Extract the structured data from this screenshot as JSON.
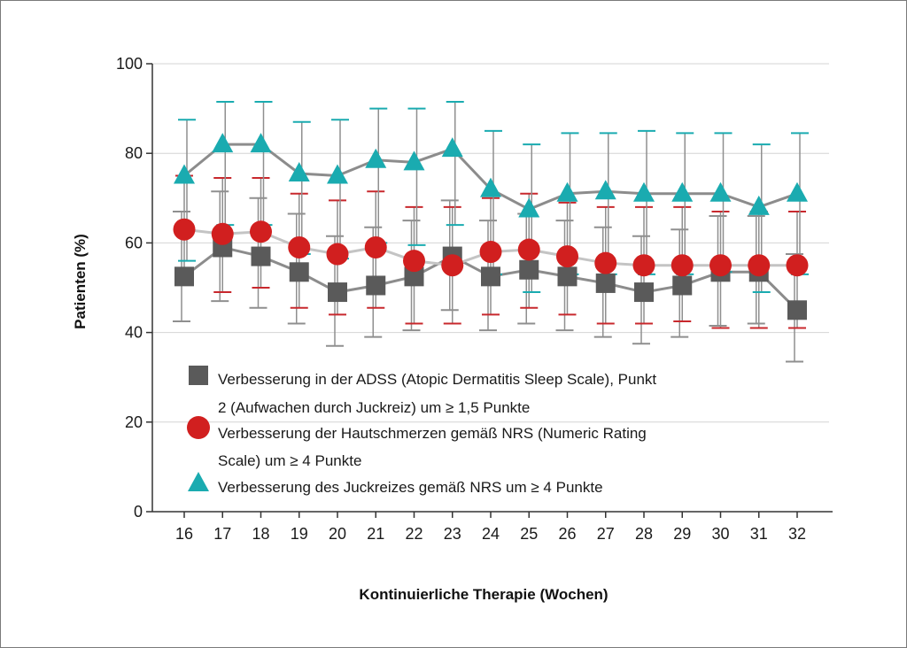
{
  "chart_data": {
    "type": "line",
    "xlabel": "Kontinuierliche Therapie (Wochen)",
    "ylabel": "Patienten (%)",
    "ylim": [
      0,
      100
    ],
    "yticks": [
      0,
      20,
      40,
      60,
      80,
      100
    ],
    "grid": "horizontal",
    "legend_position": "inside-bottom-left",
    "x": [
      16,
      17,
      18,
      19,
      20,
      21,
      22,
      23,
      24,
      25,
      26,
      27,
      28,
      29,
      30,
      31,
      32
    ],
    "series": [
      {
        "name": "Verbesserung in der ADSS (Atopic Dermatitis Sleep Scale), Punkt 2 (Aufwachen durch Juckreiz) um ≥ 1,5 Punkte",
        "legend_lines": [
          "Verbesserung in der ADSS (Atopic Dermatitis Sleep Scale), Punkt",
          "2 (Aufwachen durch Juckreiz) um ≥ 1,5 Punkte"
        ],
        "marker": "square",
        "color": "#5a5a5a",
        "line_color": "#8c8c8c",
        "values": [
          52.5,
          59,
          57,
          53.5,
          49,
          50.5,
          52.5,
          57,
          52.5,
          54,
          52.5,
          51,
          49,
          50.5,
          53.5,
          53.5,
          45
        ],
        "upper": [
          67,
          71.5,
          70,
          66.5,
          61.5,
          63.5,
          65,
          69.5,
          65,
          66.5,
          65,
          63.5,
          61.5,
          63,
          66,
          66,
          57.5
        ],
        "lower": [
          42.5,
          47,
          45.5,
          42,
          37,
          39,
          40.5,
          45,
          40.5,
          42,
          40.5,
          39,
          37.5,
          39,
          41.5,
          42,
          33.5
        ]
      },
      {
        "name": "Verbesserung der Hautschmerzen gemäß NRS (Numeric Rating Scale) um ≥ 4 Punkte",
        "legend_lines": [
          "Verbesserung der Hautschmerzen gemäß NRS (Numeric Rating",
          "Scale) um ≥ 4 Punkte"
        ],
        "marker": "circle",
        "color": "#d11f1f",
        "line_color": "#c4c4c4",
        "values": [
          63,
          62,
          62.5,
          59,
          57.5,
          59,
          56,
          55,
          58,
          58.5,
          57,
          55.5,
          55,
          55,
          55,
          55,
          55
        ],
        "upper": [
          75,
          74.5,
          74.5,
          71,
          69.5,
          71.5,
          68,
          68,
          70,
          71,
          69,
          68,
          68,
          68,
          67,
          67,
          67
        ],
        "lower": [
          51,
          49,
          50,
          45.5,
          44,
          45.5,
          42,
          42,
          44,
          45.5,
          44,
          42,
          42,
          42.5,
          41,
          41,
          41
        ]
      },
      {
        "name": "Verbesserung des Juckreizes gemäß NRS um ≥ 4 Punkte",
        "legend_lines": [
          "Verbesserung des Juckreizes gemäß NRS um ≥ 4 Punkte"
        ],
        "marker": "triangle",
        "color": "#1aabb0",
        "line_color": "#8c8c8c",
        "values": [
          75,
          82,
          82,
          75.5,
          75,
          78.5,
          78,
          81,
          72,
          67.5,
          71,
          71.5,
          71,
          71,
          71,
          68,
          71
        ],
        "upper": [
          87.5,
          91.5,
          91.5,
          87,
          87.5,
          90,
          90,
          91.5,
          85,
          82,
          84.5,
          84.5,
          85,
          84.5,
          84.5,
          82,
          84.5
        ],
        "lower": [
          56,
          64,
          64,
          57.5,
          56.5,
          60,
          59.5,
          64,
          53,
          49,
          53,
          53,
          53,
          53,
          53.5,
          49,
          53
        ]
      }
    ]
  }
}
